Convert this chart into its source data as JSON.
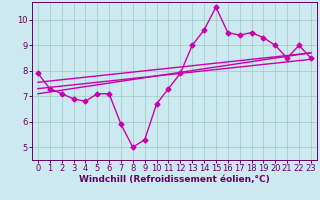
{
  "xlabel": "Windchill (Refroidissement éolien,°C)",
  "bg_color": "#cce8f0",
  "line_color": "#cc00aa",
  "x": [
    0,
    1,
    2,
    3,
    4,
    5,
    6,
    7,
    8,
    9,
    10,
    11,
    12,
    13,
    14,
    15,
    16,
    17,
    18,
    19,
    20,
    21,
    22,
    23
  ],
  "y_main": [
    7.9,
    7.3,
    7.1,
    6.9,
    6.8,
    7.1,
    7.1,
    5.9,
    5.0,
    5.3,
    6.7,
    7.3,
    7.9,
    9.0,
    9.6,
    10.5,
    9.5,
    9.4,
    9.5,
    9.3,
    9.0,
    8.5,
    9.0,
    8.5
  ],
  "y_trend1": [
    7.55,
    7.6,
    7.65,
    7.7,
    7.75,
    7.8,
    7.85,
    7.9,
    7.95,
    8.0,
    8.05,
    8.1,
    8.15,
    8.2,
    8.25,
    8.3,
    8.35,
    8.4,
    8.45,
    8.5,
    8.55,
    8.6,
    8.65,
    8.7
  ],
  "y_trend2": [
    7.1,
    7.17,
    7.24,
    7.31,
    7.38,
    7.45,
    7.52,
    7.59,
    7.66,
    7.73,
    7.8,
    7.87,
    7.94,
    8.01,
    8.08,
    8.15,
    8.22,
    8.29,
    8.36,
    8.43,
    8.5,
    8.57,
    8.64,
    8.71
  ],
  "y_trend3": [
    7.3,
    7.35,
    7.4,
    7.45,
    7.5,
    7.55,
    7.6,
    7.65,
    7.7,
    7.75,
    7.8,
    7.85,
    7.9,
    7.95,
    8.0,
    8.05,
    8.1,
    8.15,
    8.2,
    8.25,
    8.3,
    8.35,
    8.4,
    8.45
  ],
  "ylim": [
    4.5,
    10.7
  ],
  "xlim": [
    -0.5,
    23.5
  ],
  "yticks": [
    5,
    6,
    7,
    8,
    9,
    10
  ],
  "xticks": [
    0,
    1,
    2,
    3,
    4,
    5,
    6,
    7,
    8,
    9,
    10,
    11,
    12,
    13,
    14,
    15,
    16,
    17,
    18,
    19,
    20,
    21,
    22,
    23
  ],
  "grid_color": "#99ccbb",
  "marker": "D",
  "markersize": 2.5,
  "linewidth": 1.0,
  "xlabel_fontsize": 6.5,
  "tick_fontsize": 6.0,
  "tick_color": "#660066",
  "spine_color": "#660066"
}
